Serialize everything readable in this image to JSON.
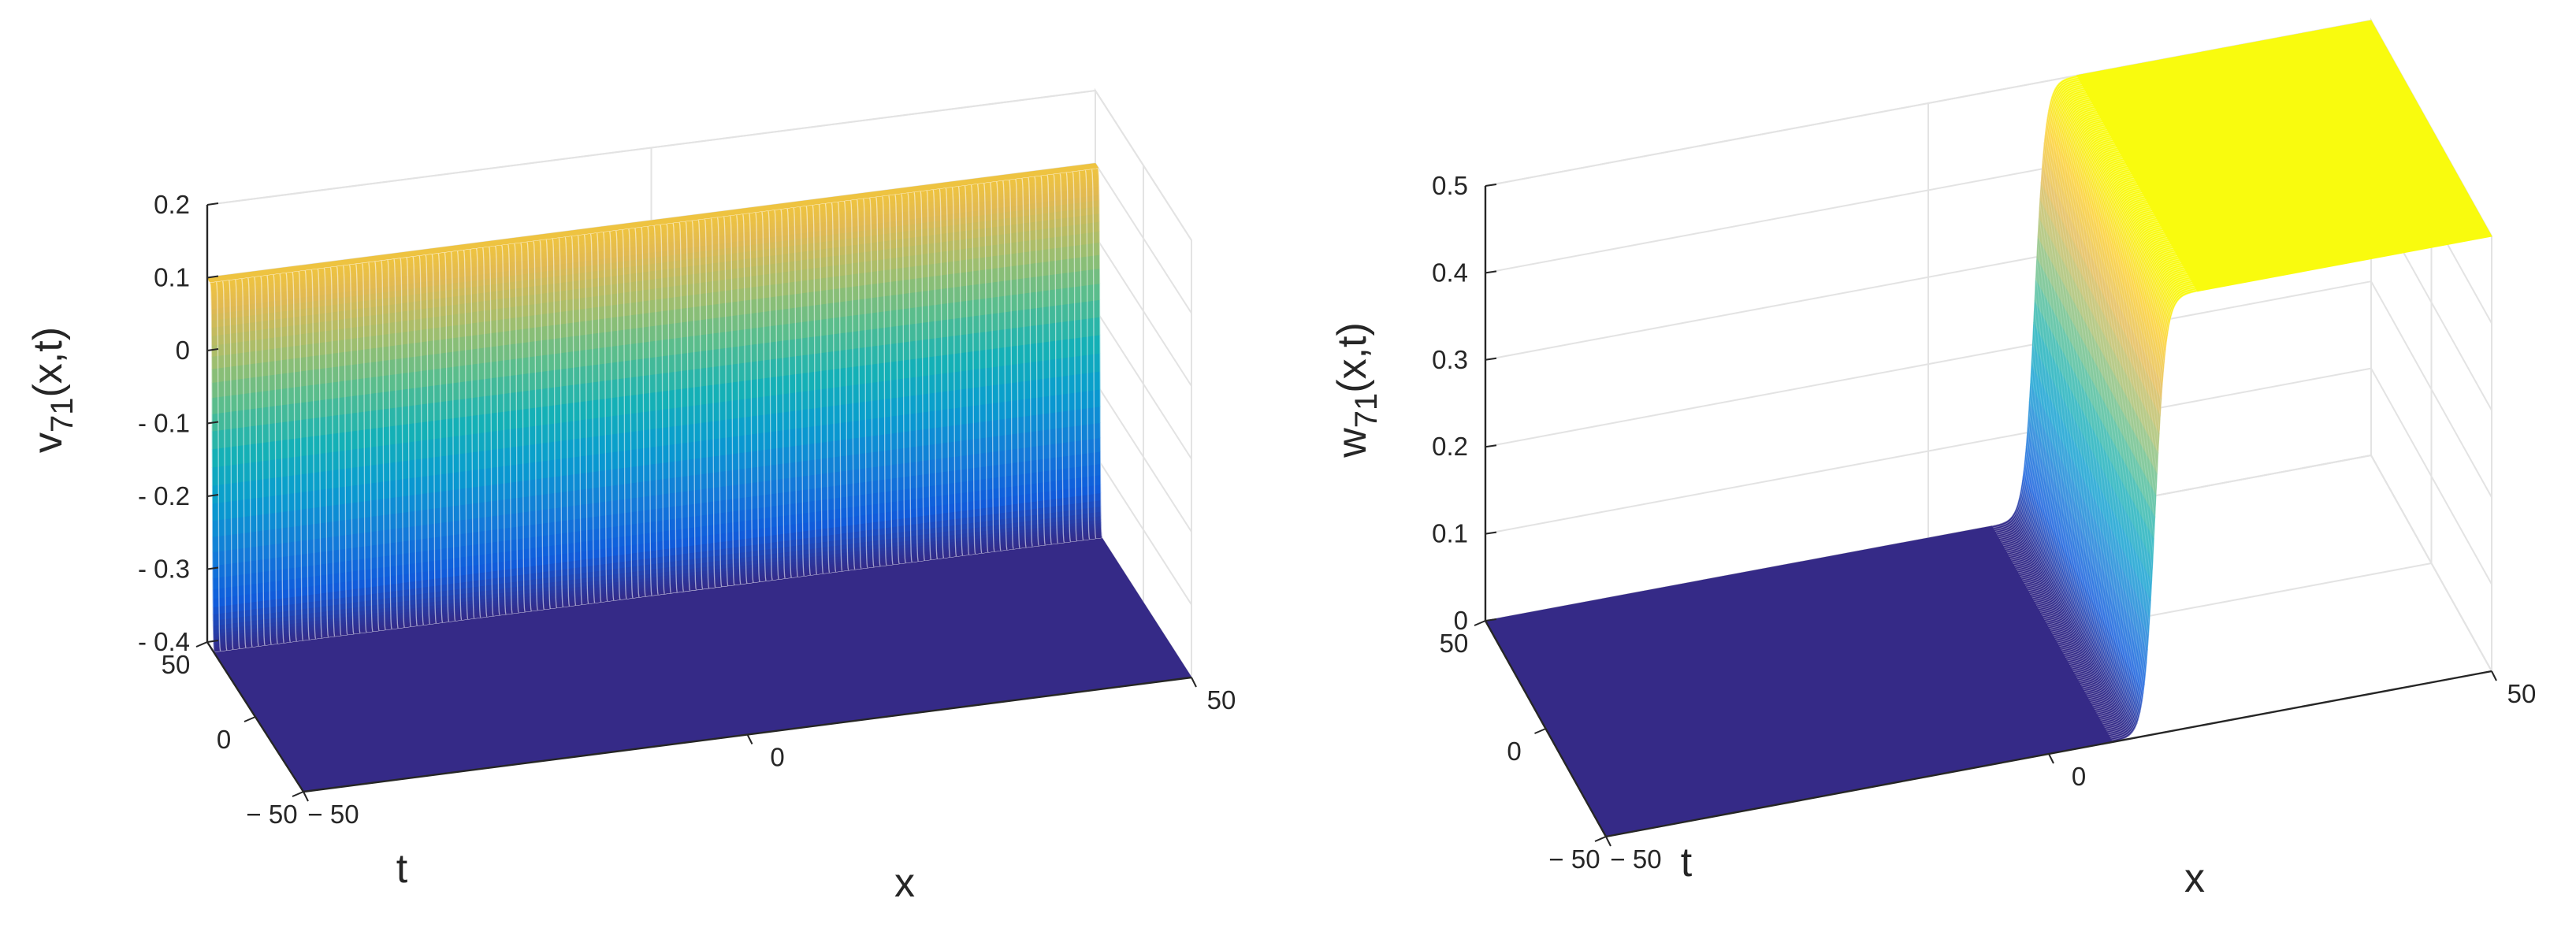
{
  "chart_data": [
    {
      "type": "surface",
      "name": "v",
      "zlabel_base": "v",
      "zlabel_sub": "71",
      "zlabel_args": "(x,t)",
      "xlabel": "x",
      "ylabel": "t",
      "xlim": [
        -50,
        50
      ],
      "ylim": [
        -50,
        50
      ],
      "zlim": [
        -0.4,
        0.2
      ],
      "xticks": [
        -50,
        0,
        50
      ],
      "yticks": [
        -50,
        0,
        50
      ],
      "zticks": [
        -0.4,
        -0.3,
        -0.2,
        -0.1,
        0,
        0.1,
        0.2
      ],
      "xtick_labels": [
        "− 50",
        "0",
        "50"
      ],
      "ytick_labels": [
        "− 50",
        "0",
        "50"
      ],
      "ztick_labels": [
        "- 0.4",
        "- 0.3",
        "- 0.2",
        "- 0.1",
        "0",
        "0.1",
        "0.2"
      ],
      "surface": {
        "kind": "kink",
        "direction": "t",
        "step_at": 45,
        "low": -0.4,
        "high": 0.1,
        "width": 0.7
      },
      "colormap": "parula",
      "grid": true
    },
    {
      "type": "surface",
      "name": "w",
      "zlabel_base": "w",
      "zlabel_sub": "71",
      "zlabel_args": "(x,t)",
      "xlabel": "x",
      "ylabel": "t",
      "xlim": [
        -50,
        50
      ],
      "ylim": [
        -50,
        50
      ],
      "zlim": [
        0,
        0.5
      ],
      "xticks": [
        -50,
        0,
        50
      ],
      "yticks": [
        -50,
        0,
        50
      ],
      "zticks": [
        0,
        0.1,
        0.2,
        0.3,
        0.4,
        0.5
      ],
      "xtick_labels": [
        "− 50",
        "0",
        "50"
      ],
      "ytick_labels": [
        "− 50",
        "0",
        "50"
      ],
      "ztick_labels": [
        "0",
        "0.1",
        "0.2",
        "0.3",
        "0.4",
        "0.5"
      ],
      "surface": {
        "kind": "kink",
        "direction": "x",
        "step_at": 12,
        "low": 0,
        "high": 0.5,
        "width": 1.2
      },
      "colormap": "parula",
      "grid": true
    }
  ]
}
